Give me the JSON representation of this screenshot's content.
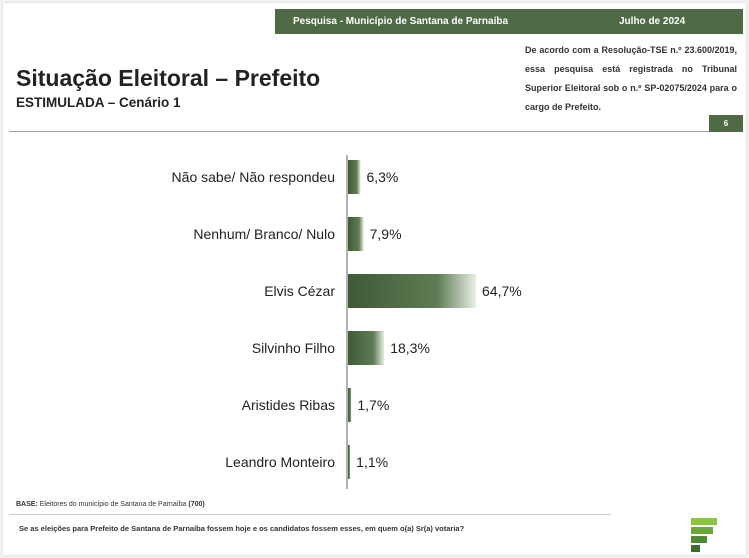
{
  "header": {
    "survey_label": "Pesquisa - Município de Santana de Parnaíba",
    "date_label": "Julho de 2024",
    "title": "Situação Eleitoral – Prefeito",
    "subtitle": "ESTIMULADA – Cenário 1",
    "registration_note": "De acordo com a Resolução-TSE n.º 23.600/2019, essa pesquisa está registrada no Tribunal Superior Eleitoral sob o n.º SP-02075/2024 para o cargo de Prefeito.",
    "page_number": "6"
  },
  "footer": {
    "base_label": "BASE:",
    "base_text": "Eleitores do município de Santana de Parnaíba",
    "base_count": "(700)",
    "question": "Se as eleições para Prefeito de Santana de Parnaíba fossem hoje e os candidatos fossem esses, em quem o(a) Sr(a) votaria?"
  },
  "colors": {
    "brand_green": "#4f6b45",
    "bar_dark": "#3f5a36",
    "bar_light": "#e9efe4"
  },
  "chart_data": {
    "type": "bar",
    "orientation": "horizontal",
    "categories": [
      "Não sabe/ Não respondeu",
      "Nenhum/ Branco/ Nulo",
      "Elvis Cézar",
      "Silvinho Filho",
      "Aristides Ribas",
      "Leandro Monteiro"
    ],
    "values": [
      6.3,
      7.9,
      64.7,
      18.3,
      1.7,
      1.1
    ],
    "value_labels": [
      "6,3%",
      "7,9%",
      "64,7%",
      "18,3%",
      "1,7%",
      "1,1%"
    ],
    "unit": "%",
    "xlim": [
      0,
      100
    ],
    "grid": false,
    "legend": "none"
  }
}
